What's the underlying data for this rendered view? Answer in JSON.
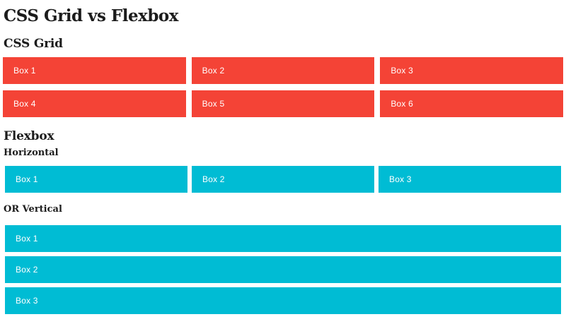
{
  "page": {
    "title": "CSS Grid vs Flexbox",
    "background": "#ffffff"
  },
  "colors": {
    "grid_box": "#f44336",
    "flex_box": "#00bcd4",
    "heading": "#1c1c1c",
    "box_label": "#ffffff"
  },
  "grid_section": {
    "heading": "CSS Grid",
    "boxes": [
      "Box 1",
      "Box 2",
      "Box 3",
      "Box 4",
      "Box 5",
      "Box 6"
    ]
  },
  "flex_section": {
    "heading": "Flexbox",
    "horizontal": {
      "heading": "Horizontal",
      "boxes": [
        "Box 1",
        "Box 2",
        "Box 3"
      ]
    },
    "vertical": {
      "heading": "OR Vertical",
      "boxes": [
        "Box 1",
        "Box 2",
        "Box 3"
      ]
    }
  }
}
